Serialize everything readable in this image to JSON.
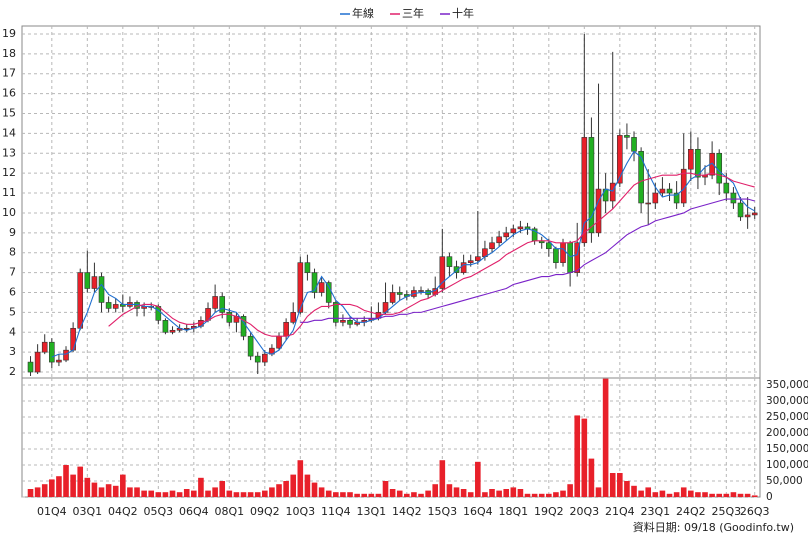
{
  "chart_data": [
    {
      "type": "candlestick",
      "legend": "top",
      "grid": true,
      "up_color": "#e8202a",
      "down_color": "#22b022",
      "categories": [
        null,
        null,
        null,
        "01Q4",
        null,
        null,
        null,
        null,
        "03Q1",
        null,
        null,
        null,
        null,
        "04Q2",
        null,
        null,
        null,
        null,
        "05Q3",
        null,
        null,
        null,
        null,
        "06Q4",
        null,
        null,
        null,
        null,
        "08Q1",
        null,
        null,
        null,
        null,
        "09Q2",
        null,
        null,
        null,
        null,
        "10Q3",
        null,
        null,
        null,
        null,
        "11Q4",
        null,
        null,
        null,
        null,
        "13Q1",
        null,
        null,
        null,
        null,
        "14Q2",
        null,
        null,
        null,
        null,
        "15Q3",
        null,
        null,
        null,
        null,
        "16Q4",
        null,
        null,
        null,
        null,
        "18Q1",
        null,
        null,
        null,
        null,
        "19Q2",
        null,
        null,
        null,
        null,
        "20Q3",
        null,
        null,
        null,
        null,
        "21Q4",
        null,
        null,
        null,
        null,
        "23Q1",
        null,
        null,
        null,
        null,
        "24Q2",
        null,
        null,
        null,
        null,
        "25Q3",
        null,
        null,
        null,
        "26Q3"
      ],
      "open": [
        2.5,
        2.0,
        3.0,
        3.5,
        2.5,
        2.6,
        3.1,
        4.2,
        7.0,
        6.2,
        6.8,
        5.5,
        5.2,
        5.4,
        5.3,
        5.5,
        5.2,
        5.3,
        5.3,
        4.6,
        4.0,
        4.1,
        4.2,
        4.2,
        4.3,
        4.6,
        5.2,
        5.8,
        5.0,
        4.5,
        4.8,
        3.8,
        2.8,
        2.5,
        2.9,
        3.2,
        3.8,
        4.5,
        5.0,
        7.5,
        7.0,
        6.0,
        6.5,
        5.5,
        4.5,
        4.6,
        4.4,
        4.5,
        4.6,
        4.7,
        5.0,
        5.5,
        6.0,
        5.9,
        5.8,
        6.1,
        6.1,
        5.9,
        6.2,
        7.8,
        7.3,
        7.0,
        7.5,
        7.6,
        7.8,
        8.2,
        8.5,
        8.8,
        9.0,
        9.2,
        9.3,
        9.2,
        8.6,
        8.5,
        8.2,
        7.5,
        8.5,
        7.0,
        8.5,
        13.8,
        9.0,
        11.2,
        10.6,
        11.5,
        13.9,
        13.8,
        13.1,
        10.5,
        10.5,
        11.0,
        11.2,
        11.0,
        10.5,
        12.2,
        13.2,
        11.8,
        11.9,
        13.0,
        11.5,
        11.0,
        10.5,
        9.8,
        9.9
      ],
      "high": [
        2.8,
        3.4,
        3.9,
        3.7,
        2.9,
        3.3,
        4.5,
        7.2,
        8.1,
        7.5,
        7.0,
        5.8,
        5.7,
        5.9,
        5.8,
        5.6,
        5.5,
        5.5,
        5.4,
        4.7,
        4.3,
        4.4,
        4.4,
        4.5,
        4.8,
        5.5,
        6.4,
        6.0,
        5.2,
        5.0,
        4.9,
        4.0,
        3.0,
        3.1,
        3.4,
        4.0,
        4.7,
        5.5,
        7.8,
        7.9,
        7.2,
        6.8,
        6.6,
        5.6,
        4.9,
        4.8,
        4.7,
        4.8,
        5.3,
        5.5,
        6.5,
        6.4,
        6.3,
        6.1,
        6.3,
        6.3,
        6.2,
        6.8,
        9.2,
        8.0,
        7.6,
        7.9,
        7.9,
        10.1,
        8.6,
        8.8,
        9.1,
        9.3,
        9.4,
        9.6,
        9.5,
        9.3,
        8.8,
        8.7,
        8.3,
        8.7,
        8.6,
        9.5,
        19.0,
        14.8,
        16.5,
        12.0,
        18.1,
        14.2,
        14.5,
        14.1,
        13.3,
        12.2,
        11.5,
        11.8,
        11.5,
        11.6,
        14.0,
        14.1,
        13.8,
        12.4,
        13.6,
        13.2,
        12.0,
        11.3,
        10.8,
        10.8,
        10.3
      ],
      "low": [
        1.8,
        1.9,
        2.9,
        2.2,
        2.3,
        2.5,
        3.0,
        4.1,
        6.0,
        6.0,
        5.0,
        5.0,
        5.0,
        5.0,
        5.2,
        4.8,
        4.8,
        5.1,
        4.4,
        3.9,
        3.9,
        4.0,
        4.0,
        4.0,
        4.2,
        4.5,
        5.0,
        4.7,
        4.3,
        4.0,
        3.6,
        2.6,
        1.9,
        2.3,
        2.8,
        3.1,
        3.6,
        4.4,
        4.9,
        6.6,
        5.7,
        5.8,
        5.2,
        4.3,
        4.3,
        4.2,
        4.3,
        4.3,
        4.5,
        4.6,
        4.9,
        5.4,
        5.6,
        5.6,
        5.7,
        5.9,
        5.7,
        5.8,
        6.0,
        6.8,
        6.7,
        6.9,
        7.3,
        7.4,
        7.6,
        8.0,
        8.3,
        8.6,
        8.8,
        9.0,
        8.9,
        8.4,
        8.2,
        7.8,
        7.2,
        7.3,
        6.3,
        6.8,
        8.3,
        8.5,
        8.8,
        10.0,
        10.2,
        11.3,
        13.2,
        12.6,
        10.0,
        9.4,
        10.2,
        10.8,
        10.6,
        10.2,
        10.3,
        11.6,
        11.2,
        11.4,
        11.7,
        10.9,
        10.6,
        10.2,
        9.6,
        9.2,
        9.7
      ],
      "close": [
        2.0,
        3.0,
        3.5,
        2.5,
        2.6,
        3.1,
        4.2,
        7.0,
        6.2,
        6.8,
        5.5,
        5.2,
        5.4,
        5.3,
        5.5,
        5.2,
        5.3,
        5.3,
        4.6,
        4.0,
        4.1,
        4.2,
        4.2,
        4.3,
        4.6,
        5.2,
        5.8,
        5.0,
        4.5,
        4.8,
        3.8,
        2.8,
        2.5,
        2.9,
        3.2,
        3.8,
        4.5,
        5.0,
        7.5,
        7.0,
        6.0,
        6.5,
        5.5,
        4.5,
        4.6,
        4.4,
        4.5,
        4.6,
        4.7,
        5.0,
        5.5,
        6.0,
        5.9,
        5.8,
        6.1,
        6.1,
        5.9,
        6.2,
        7.8,
        7.3,
        7.0,
        7.5,
        7.6,
        7.8,
        8.2,
        8.5,
        8.8,
        9.0,
        9.2,
        9.3,
        9.2,
        8.6,
        8.5,
        8.2,
        7.5,
        8.5,
        7.0,
        8.5,
        13.8,
        9.0,
        11.2,
        10.6,
        11.5,
        13.9,
        13.8,
        13.1,
        10.5,
        10.5,
        11.0,
        11.2,
        11.0,
        10.5,
        12.2,
        13.2,
        11.8,
        11.9,
        13.0,
        11.5,
        11.0,
        10.5,
        9.8,
        9.9,
        10.0
      ],
      "series": [
        {
          "name": "年線",
          "color": "#1f6fd0",
          "values": [
            null,
            null,
            null,
            2.75,
            2.9,
            2.9,
            3.1,
            4.2,
            5.0,
            6.0,
            6.4,
            5.9,
            5.7,
            5.4,
            5.4,
            5.4,
            5.3,
            5.3,
            5.1,
            4.8,
            4.5,
            4.2,
            4.1,
            4.2,
            4.3,
            4.6,
            5.0,
            5.2,
            5.1,
            5.0,
            4.5,
            4.0,
            3.5,
            3.0,
            2.9,
            3.1,
            3.6,
            4.1,
            5.2,
            6.0,
            6.1,
            6.8,
            6.3,
            5.6,
            5.3,
            4.8,
            4.5,
            4.5,
            4.6,
            4.7,
            5.0,
            5.3,
            5.6,
            5.8,
            5.95,
            6.0,
            6.0,
            6.1,
            6.5,
            6.8,
            7.1,
            7.4,
            7.4,
            7.5,
            7.8,
            8.0,
            8.3,
            8.6,
            8.9,
            9.1,
            9.2,
            9.1,
            8.9,
            8.6,
            8.2,
            8.2,
            7.8,
            7.9,
            9.5,
            9.8,
            10.6,
            11.2,
            11.1,
            11.8,
            12.5,
            13.1,
            12.8,
            12.0,
            11.3,
            10.8,
            10.9,
            10.9,
            11.2,
            11.7,
            11.9,
            12.3,
            12.5,
            12.1,
            11.8,
            11.5,
            10.7,
            10.3,
            10.1
          ]
        },
        {
          "name": "三年",
          "color": "#e0206a",
          "values": [
            null,
            null,
            null,
            null,
            null,
            null,
            null,
            null,
            null,
            null,
            null,
            4.3,
            4.6,
            4.9,
            5.1,
            5.3,
            5.4,
            5.4,
            5.3,
            5.0,
            4.7,
            4.5,
            4.4,
            4.4,
            4.5,
            4.6,
            4.8,
            4.9,
            4.9,
            4.8,
            4.6,
            4.4,
            4.1,
            3.9,
            3.8,
            3.8,
            3.8,
            3.9,
            4.3,
            4.8,
            5.1,
            5.3,
            5.3,
            5.4,
            5.4,
            5.4,
            5.3,
            5.1,
            5.0,
            4.9,
            4.9,
            4.9,
            5.0,
            5.2,
            5.4,
            5.6,
            5.7,
            5.9,
            6.1,
            6.3,
            6.5,
            6.7,
            6.8,
            7.0,
            7.2,
            7.4,
            7.6,
            7.9,
            8.1,
            8.3,
            8.5,
            8.6,
            8.6,
            8.6,
            8.5,
            8.5,
            8.5,
            8.6,
            9.0,
            9.3,
            9.6,
            9.9,
            10.2,
            10.6,
            11.0,
            11.4,
            11.6,
            11.7,
            11.8,
            11.9,
            11.9,
            11.9,
            12.0,
            12.0,
            11.9,
            11.9,
            12.0,
            11.9,
            11.8,
            11.6,
            11.5,
            11.4,
            11.3
          ]
        },
        {
          "name": "十年",
          "color": "#7a22c8",
          "values": [
            null,
            null,
            null,
            null,
            null,
            null,
            null,
            null,
            null,
            null,
            null,
            null,
            null,
            null,
            null,
            null,
            null,
            null,
            null,
            null,
            null,
            null,
            null,
            null,
            null,
            null,
            null,
            null,
            null,
            null,
            null,
            null,
            null,
            null,
            null,
            null,
            null,
            null,
            4.5,
            4.5,
            4.6,
            4.6,
            4.7,
            4.7,
            4.7,
            4.7,
            4.7,
            4.7,
            4.7,
            4.7,
            4.8,
            4.8,
            4.9,
            4.9,
            5.0,
            5.0,
            5.1,
            5.2,
            5.3,
            5.4,
            5.5,
            5.6,
            5.7,
            5.8,
            5.9,
            6.0,
            6.1,
            6.2,
            6.4,
            6.5,
            6.6,
            6.7,
            6.8,
            6.8,
            6.9,
            6.9,
            7.0,
            7.1,
            7.4,
            7.6,
            7.8,
            8.0,
            8.3,
            8.6,
            8.9,
            9.1,
            9.3,
            9.4,
            9.6,
            9.7,
            9.8,
            9.9,
            10.0,
            10.2,
            10.3,
            10.4,
            10.5,
            10.6,
            10.7,
            10.7,
            10.7,
            10.7,
            10.6
          ]
        }
      ],
      "ylim": [
        1.7,
        19.4
      ],
      "yticks": [
        2,
        3,
        4,
        5,
        6,
        7,
        8,
        9,
        10,
        11,
        12,
        13,
        14,
        15,
        16,
        17,
        18,
        19
      ]
    },
    {
      "type": "bar",
      "color": "#e8202a",
      "grid": true,
      "values": [
        25000,
        30000,
        40000,
        55000,
        65000,
        100000,
        70000,
        95000,
        60000,
        45000,
        30000,
        40000,
        35000,
        70000,
        30000,
        30000,
        20000,
        20000,
        15000,
        15000,
        20000,
        15000,
        25000,
        20000,
        60000,
        20000,
        30000,
        50000,
        20000,
        15000,
        15000,
        15000,
        15000,
        20000,
        30000,
        40000,
        50000,
        70000,
        115000,
        70000,
        45000,
        30000,
        20000,
        15000,
        15000,
        15000,
        10000,
        10000,
        10000,
        10000,
        50000,
        25000,
        20000,
        10000,
        15000,
        10000,
        20000,
        40000,
        115000,
        40000,
        30000,
        25000,
        15000,
        110000,
        15000,
        25000,
        20000,
        25000,
        30000,
        25000,
        10000,
        10000,
        10000,
        10000,
        15000,
        20000,
        40000,
        255000,
        245000,
        120000,
        30000,
        370000,
        75000,
        75000,
        50000,
        35000,
        20000,
        30000,
        15000,
        20000,
        10000,
        15000,
        30000,
        20000,
        15000,
        15000,
        10000,
        10000,
        10000,
        15000,
        10000,
        10000,
        5000
      ],
      "ylim": [
        0,
        372000
      ],
      "yticks": [
        0,
        {
          "value": 50000,
          "label": "50,000"
        },
        {
          "value": 100000,
          "label": "100,000"
        },
        {
          "value": 150000,
          "label": "150,000"
        },
        {
          "value": 200000,
          "label": "200,000"
        },
        {
          "value": 250000,
          "label": "250,000"
        },
        {
          "value": 300000,
          "label": "300,000"
        },
        {
          "value": 350000,
          "label": "350,000"
        }
      ],
      "annotation": "資料日期: 09/18 (Goodinfo.tw)"
    }
  ]
}
